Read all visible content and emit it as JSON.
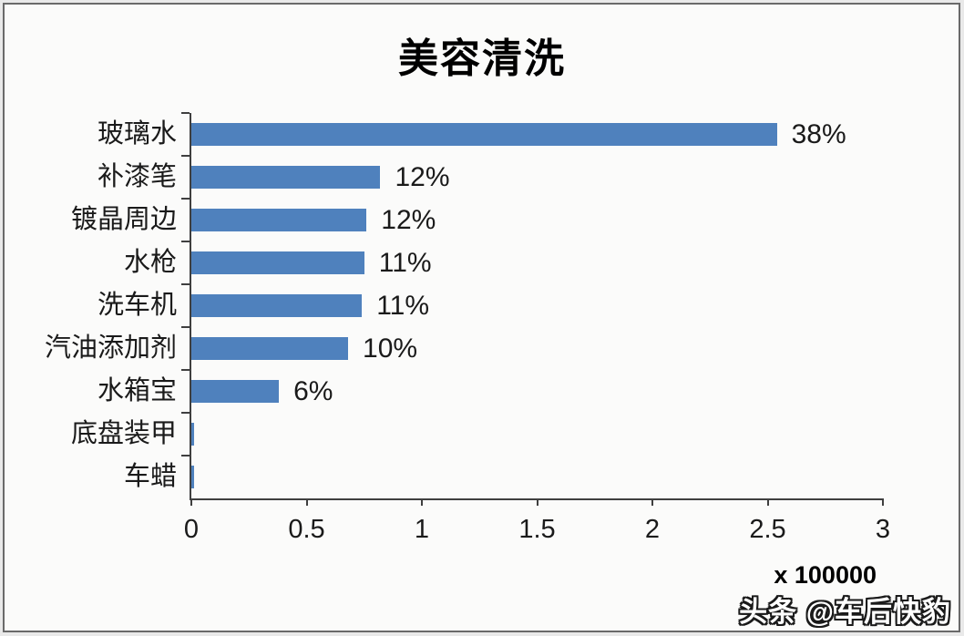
{
  "chart_data": {
    "type": "bar",
    "orientation": "horizontal",
    "title": "美容清洗",
    "categories": [
      "玻璃水",
      "补漆笔",
      "镀晶周边",
      "水枪",
      "洗车机",
      "汽油添加剂",
      "水箱宝",
      "底盘装甲",
      "车蜡"
    ],
    "values": [
      2.54,
      0.82,
      0.76,
      0.75,
      0.74,
      0.68,
      0.38,
      0.01,
      0.01
    ],
    "value_labels": [
      "38%",
      "12%",
      "12%",
      "11%",
      "11%",
      "10%",
      "6%",
      "",
      ""
    ],
    "x_ticks": [
      "0",
      "0.5",
      "1",
      "1.5",
      "2",
      "2.5",
      "3"
    ],
    "xlim": [
      0,
      3
    ],
    "axis_note": "x 100000",
    "bar_color": "#4f81bd",
    "axis_color": "#3f3f3f",
    "legend": "none",
    "grid": "off"
  },
  "watermark": {
    "text": "头条 @车后快豹"
  }
}
